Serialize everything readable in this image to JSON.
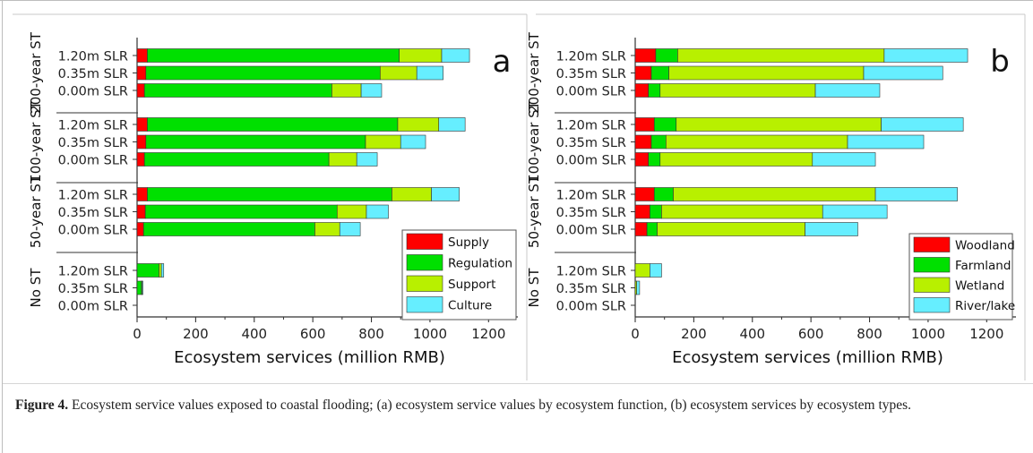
{
  "figure": {
    "caption_label": "Figure 4.",
    "caption_text": " Ecosystem service values exposed to coastal flooding; (a) ecosystem service values by ecosystem function, (b) ecosystem services by ecosystem types."
  },
  "chart_data": [
    {
      "type": "bar",
      "orientation": "horizontal",
      "stacked": true,
      "panel_label": "a",
      "xlabel": "Ecosystem services (million RMB)",
      "xlim": [
        0,
        1300
      ],
      "xticks": [
        0,
        200,
        400,
        600,
        800,
        1000,
        1200
      ],
      "legend_position": "bottom-right",
      "groups": [
        "200-year ST",
        "100-year ST",
        "50-year ST",
        "No ST"
      ],
      "categories": [
        "1.20m SLR",
        "0.35m SLR",
        "0.00m SLR"
      ],
      "series": [
        {
          "name": "Supply",
          "color": "#ff0000",
          "values": [
            [
              35,
              30,
              25
            ],
            [
              35,
              30,
              25
            ],
            [
              35,
              28,
              22
            ],
            [
              0,
              0,
              0
            ]
          ]
        },
        {
          "name": "Regulation",
          "color": "#00e000",
          "values": [
            [
              860,
              800,
              640
            ],
            [
              855,
              750,
              630
            ],
            [
              835,
              655,
              585
            ],
            [
              75,
              15,
              0
            ]
          ]
        },
        {
          "name": "Support",
          "color": "#b8f000",
          "values": [
            [
              145,
              125,
              100
            ],
            [
              140,
              120,
              95
            ],
            [
              135,
              100,
              85
            ],
            [
              8,
              2,
              0
            ]
          ]
        },
        {
          "name": "Culture",
          "color": "#66eeff",
          "values": [
            [
              95,
              90,
              70
            ],
            [
              90,
              85,
              70
            ],
            [
              95,
              75,
              70
            ],
            [
              8,
              3,
              0
            ]
          ]
        }
      ]
    },
    {
      "type": "bar",
      "orientation": "horizontal",
      "stacked": true,
      "panel_label": "b",
      "xlabel": "Ecosystem services (million RMB)",
      "xlim": [
        0,
        1300
      ],
      "xticks": [
        0,
        200,
        400,
        600,
        800,
        1000,
        1200
      ],
      "legend_position": "bottom-right",
      "groups": [
        "200-year ST",
        "100-year ST",
        "50-year ST",
        "No ST"
      ],
      "categories": [
        "1.20m SLR",
        "0.35m SLR",
        "0.00m SLR"
      ],
      "series": [
        {
          "name": "Woodland",
          "color": "#ff0000",
          "values": [
            [
              70,
              55,
              45
            ],
            [
              65,
              55,
              45
            ],
            [
              65,
              50,
              40
            ],
            [
              0,
              0,
              0
            ]
          ]
        },
        {
          "name": "Farmland",
          "color": "#00e000",
          "values": [
            [
              75,
              60,
              40
            ],
            [
              75,
              50,
              40
            ],
            [
              65,
              40,
              35
            ],
            [
              0,
              0,
              0
            ]
          ]
        },
        {
          "name": "Wetland",
          "color": "#b8f000",
          "values": [
            [
              705,
              665,
              530
            ],
            [
              700,
              620,
              520
            ],
            [
              690,
              550,
              505
            ],
            [
              50,
              5,
              0
            ]
          ]
        },
        {
          "name": "River/lake",
          "color": "#66eeff",
          "values": [
            [
              285,
              270,
              220
            ],
            [
              280,
              260,
              215
            ],
            [
              280,
              220,
              180
            ],
            [
              40,
              10,
              0
            ]
          ]
        }
      ]
    }
  ]
}
